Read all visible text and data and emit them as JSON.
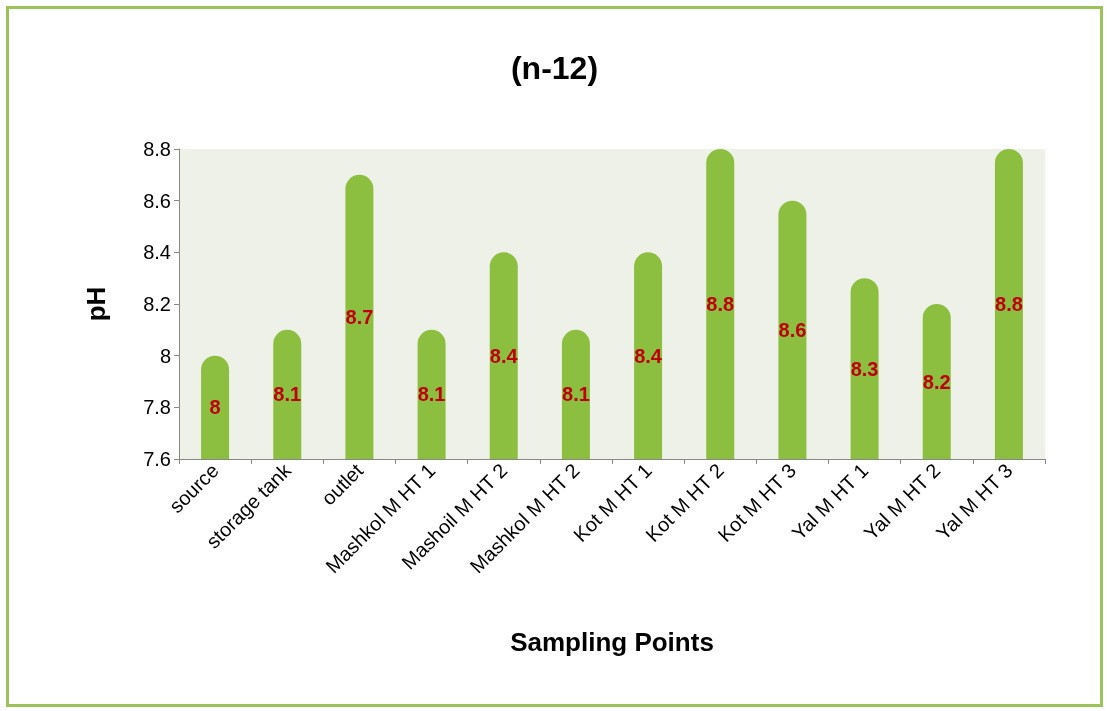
{
  "chart_data": {
    "type": "bar",
    "title": "(n-12)",
    "xlabel": "Sampling Points",
    "ylabel": "pH",
    "categories": [
      "source",
      "storage tank",
      "outlet",
      "Mashkol M HT 1",
      "Mashoil M HT 2",
      "Mashkol M HT 2",
      "Kot M HT 1",
      "Kot M HT 2",
      "Kot M HT 3",
      "Yal M HT 1",
      "Yal M HT 2",
      "Yal M HT 3"
    ],
    "values": [
      8,
      8.1,
      8.7,
      8.1,
      8.4,
      8.1,
      8.4,
      8.8,
      8.6,
      8.3,
      8.2,
      8.8
    ],
    "color": "#8cbf3f",
    "ylim": [
      7.6,
      8.8
    ],
    "yticks": [
      7.6,
      7.8,
      8,
      8.2,
      8.4,
      8.6,
      8.8
    ],
    "grid": false,
    "data_labels": true
  }
}
